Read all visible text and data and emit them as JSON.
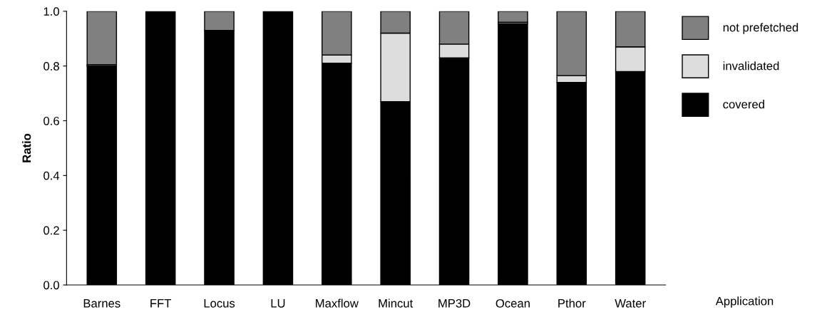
{
  "chart_data": {
    "type": "bar",
    "stacked": true,
    "xlabel": "Application",
    "ylabel": "Ratio",
    "categories": [
      "Barnes",
      "FFT",
      "Locus",
      "LU",
      "Maxflow",
      "Mincut",
      "MP3D",
      "Ocean",
      "Pthor",
      "Water"
    ],
    "series": [
      {
        "name": "covered",
        "color": "#000000",
        "values": [
          0.8,
          1.0,
          0.93,
          1.0,
          0.81,
          0.67,
          0.83,
          0.955,
          0.74,
          0.78
        ]
      },
      {
        "name": "invalidated",
        "color": "#dddddd",
        "values": [
          0.005,
          null,
          null,
          null,
          0.03,
          0.25,
          0.05,
          0.005,
          0.025,
          0.09
        ]
      },
      {
        "name": "not prefetched",
        "color": "#808080",
        "values": [
          0.195,
          null,
          0.07,
          null,
          0.16,
          0.08,
          0.12,
          0.04,
          0.235,
          0.13
        ]
      }
    ],
    "ylim": [
      0,
      1.0
    ],
    "yticks": [
      {
        "value": 0,
        "label": "0.0"
      },
      {
        "value": 0.2,
        "label": "0.2"
      },
      {
        "value": 0.4,
        "label": "0.4"
      },
      {
        "value": 0.6,
        "label": "0.6"
      },
      {
        "value": 0.8,
        "label": "0.8"
      },
      {
        "value": 1.0,
        "label": "1.0"
      }
    ],
    "grid": false,
    "legend": "right"
  }
}
